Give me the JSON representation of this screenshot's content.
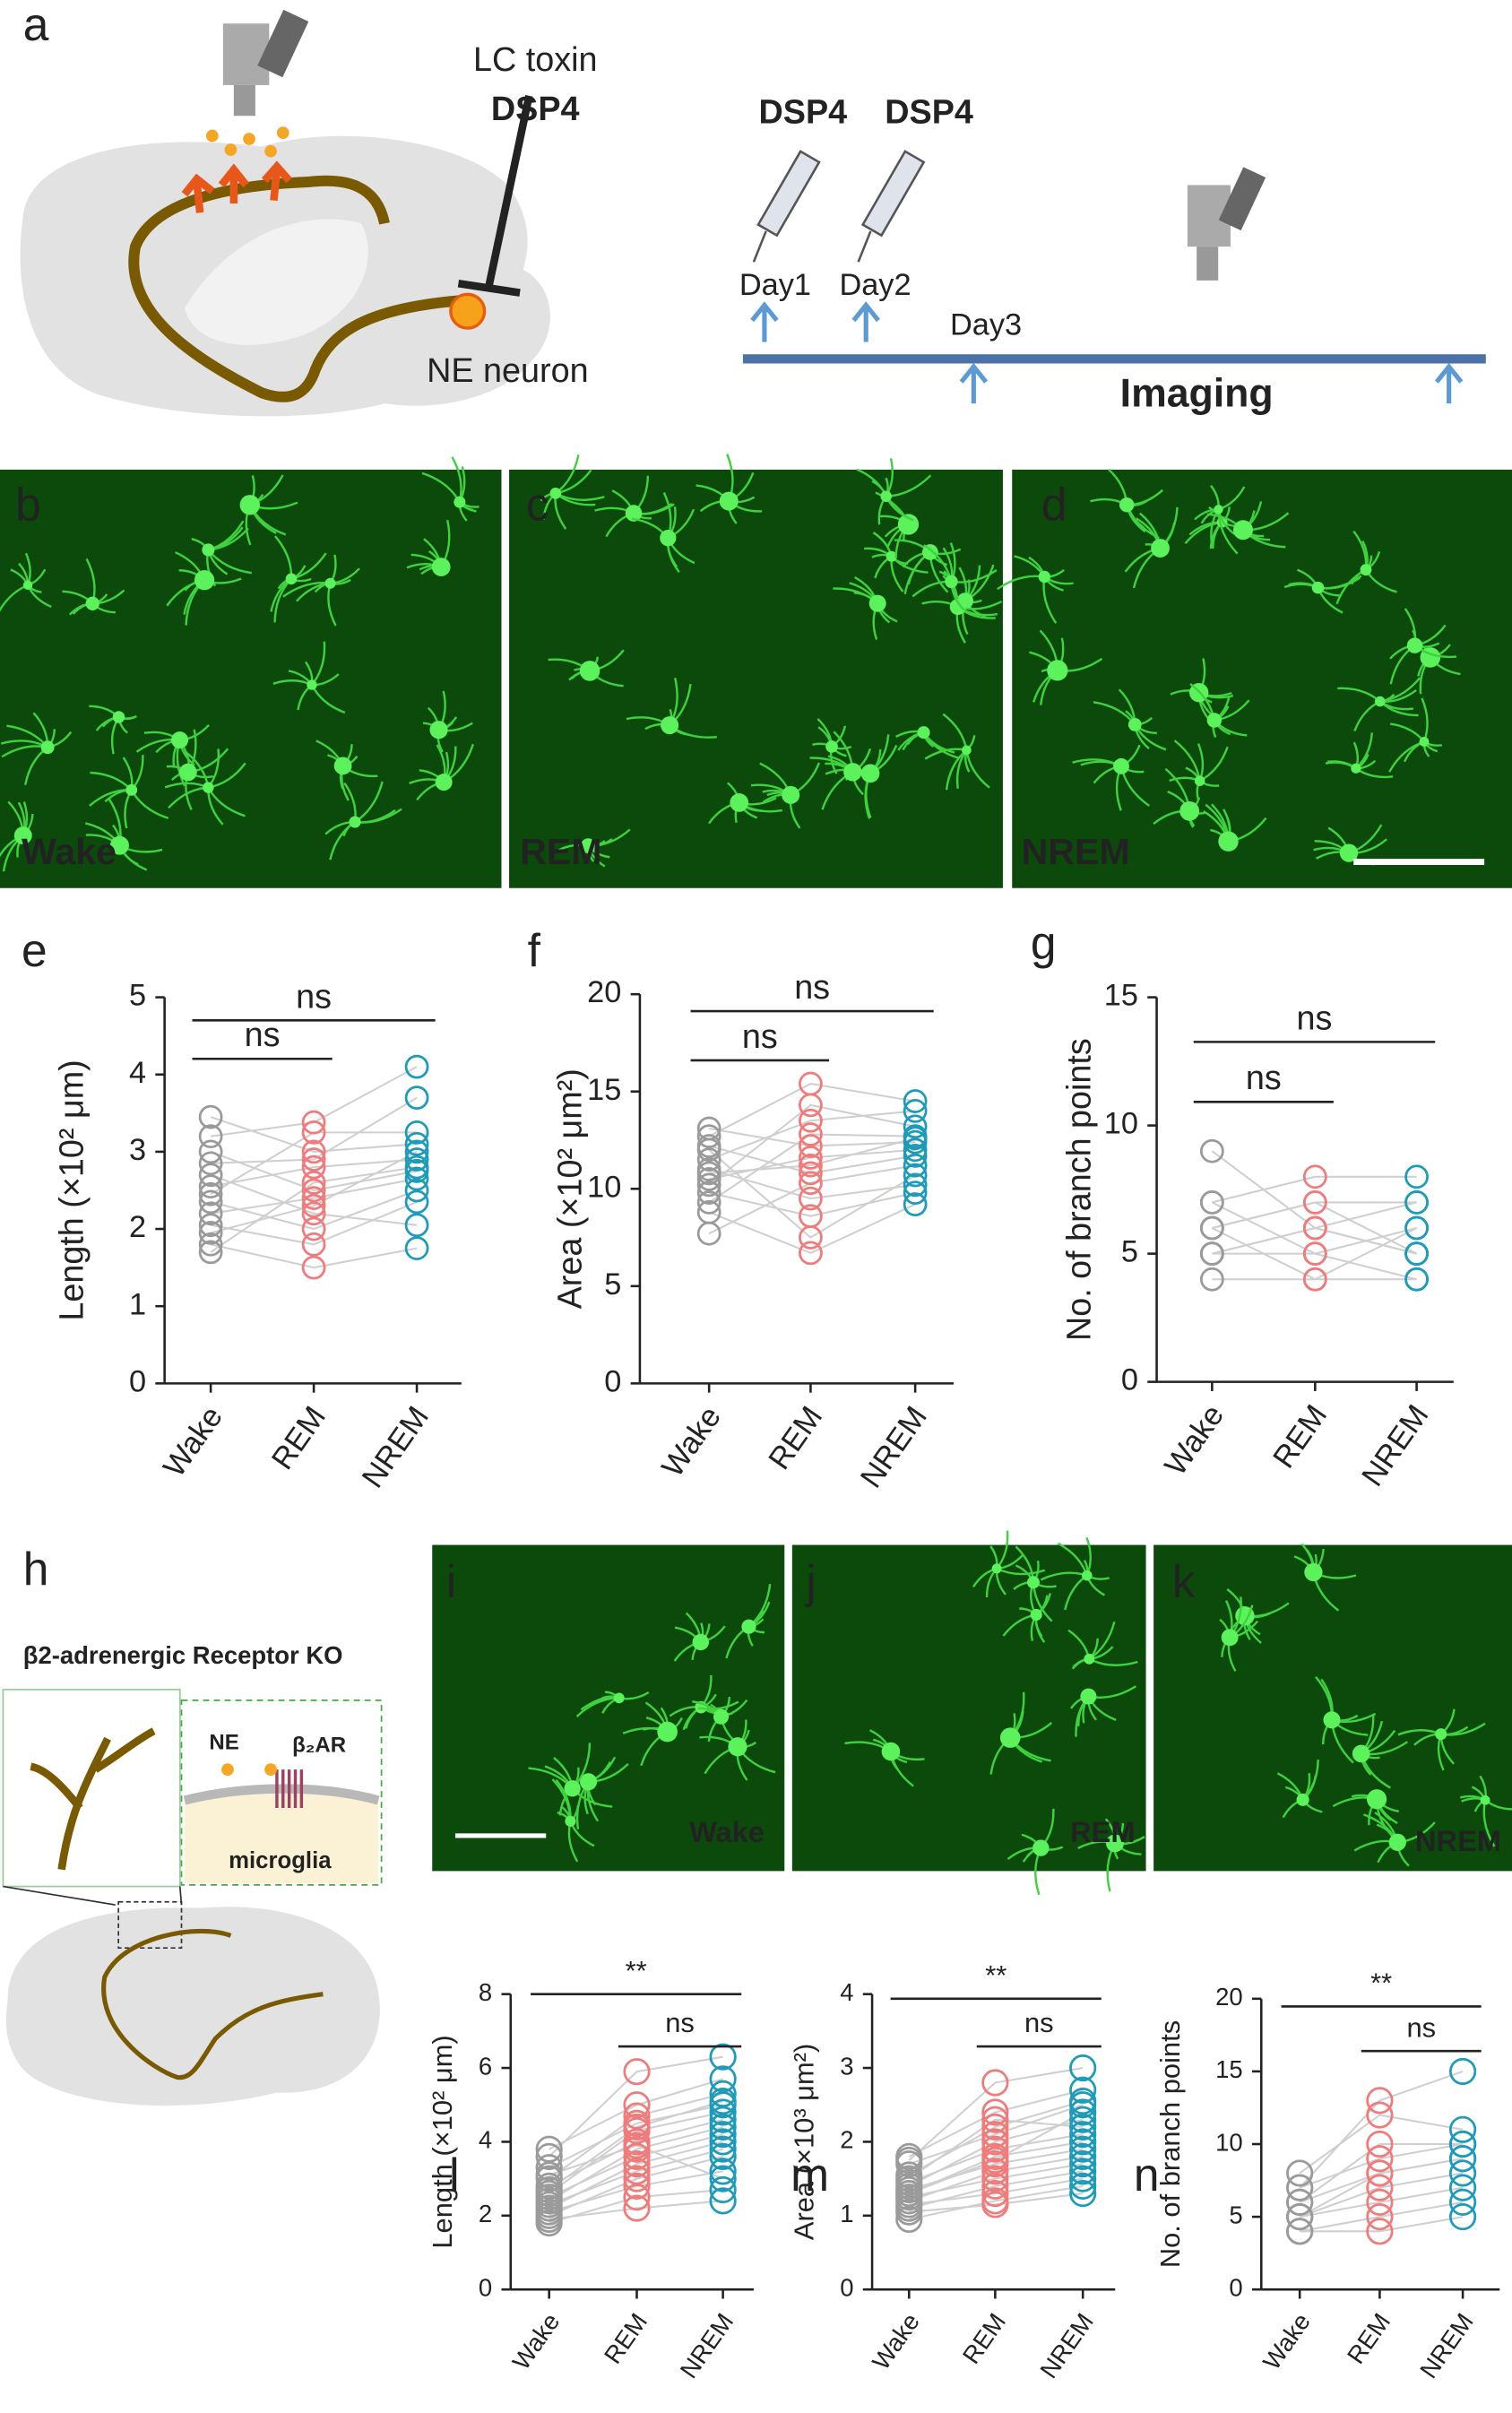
{
  "panel_labels": [
    "a",
    "b",
    "c",
    "d",
    "e",
    "f",
    "g",
    "h",
    "i",
    "j",
    "k",
    "l",
    "m",
    "n"
  ],
  "schematic_a": {
    "toxin_label": "LC toxin",
    "toxin_name": "DSP4",
    "neuron_label": "NE neuron"
  },
  "timeline": {
    "injections": [
      "DSP4",
      "DSP4"
    ],
    "days": [
      "Day1",
      "Day2",
      "Day3"
    ],
    "imaging_label": "Imaging"
  },
  "micrographs_top": [
    "Wake",
    "REM",
    "NREM"
  ],
  "schematic_h": {
    "title": "β2-adrenergic Receptor KO",
    "ne_label": "NE",
    "receptor_label": "β₂AR",
    "cell_label": "microglia"
  },
  "micrographs_bottom": [
    "Wake",
    "REM",
    "NREM"
  ],
  "chart_data": [
    {
      "type": "paired-scatter",
      "ylabel": "Length (×10² μm)",
      "categories": [
        "Wake",
        "REM",
        "NREM"
      ],
      "colors": [
        "#9a9a9a",
        "#ef7b7b",
        "#1d9bb8"
      ],
      "values": [
        [
          3.45,
          3.2,
          3.0,
          2.85,
          2.7,
          2.55,
          2.45,
          2.35,
          2.2,
          2.05,
          1.95,
          1.8,
          1.7
        ],
        [
          3.0,
          3.38,
          2.5,
          2.9,
          2.2,
          2.8,
          3.25,
          2.0,
          2.4,
          1.8,
          2.3,
          1.5,
          2.6
        ],
        [
          3.1,
          4.1,
          2.75,
          3.7,
          2.05,
          2.9,
          3.25,
          2.5,
          2.65,
          2.35,
          3.0,
          1.75,
          2.8
        ]
      ],
      "ylim": [
        0,
        5
      ],
      "yticks": [
        0,
        1,
        2,
        3,
        4,
        5
      ],
      "brackets": [
        {
          "label": "ns",
          "span": [
            0,
            1
          ]
        },
        {
          "label": "ns",
          "span": [
            0,
            2
          ]
        }
      ]
    },
    {
      "type": "paired-scatter",
      "ylabel": "Area (×10² μm²)",
      "categories": [
        "Wake",
        "REM",
        "NREM"
      ],
      "colors": [
        "#9a9a9a",
        "#ef7b7b",
        "#1d9bb8"
      ],
      "values": [
        [
          13.1,
          12.7,
          12.2,
          11.5,
          11.0,
          10.5,
          10.2,
          9.8,
          9.3,
          8.8,
          7.7,
          12.0,
          10.8
        ],
        [
          12.2,
          15.4,
          10.8,
          13.5,
          9.5,
          11.6,
          14.3,
          8.6,
          12.8,
          6.7,
          10.3,
          7.5,
          11.2
        ],
        [
          12.4,
          14.5,
          11.7,
          14.0,
          10.2,
          12.0,
          13.2,
          9.8,
          12.7,
          9.2,
          11.2,
          10.7,
          12.6
        ]
      ],
      "ylim": [
        0,
        20
      ],
      "yticks": [
        0,
        5,
        10,
        15,
        20
      ],
      "brackets": [
        {
          "label": "ns",
          "span": [
            0,
            1
          ]
        },
        {
          "label": "ns",
          "span": [
            0,
            2
          ]
        }
      ]
    },
    {
      "type": "paired-scatter",
      "ylabel": "No. of branch points",
      "categories": [
        "Wake",
        "REM",
        "NREM"
      ],
      "colors": [
        "#9a9a9a",
        "#ef7b7b",
        "#1d9bb8"
      ],
      "values": [
        [
          9,
          7,
          7,
          6,
          6,
          5,
          5,
          4,
          6,
          5
        ],
        [
          6,
          8,
          5,
          7,
          4,
          6,
          5,
          4,
          7,
          6
        ],
        [
          5,
          8,
          6,
          7,
          4,
          5,
          4,
          6,
          5,
          7
        ]
      ],
      "ylim": [
        0,
        15
      ],
      "yticks": [
        0,
        5,
        10,
        15
      ],
      "brackets": [
        {
          "label": "ns",
          "span": [
            0,
            1
          ]
        },
        {
          "label": "ns",
          "span": [
            0,
            2
          ]
        }
      ]
    },
    {
      "type": "paired-scatter",
      "ylabel": "Length (×10² μm)",
      "categories": [
        "Wake",
        "REM",
        "NREM"
      ],
      "colors": [
        "#9a9a9a",
        "#ef7b7b",
        "#1d9bb8"
      ],
      "values": [
        [
          3.8,
          3.6,
          3.3,
          3.0,
          2.8,
          2.6,
          2.5,
          2.4,
          2.3,
          2.2,
          2.1,
          2.0,
          1.9,
          1.8,
          2.7,
          3.1
        ],
        [
          5.0,
          5.9,
          4.5,
          4.7,
          4.0,
          4.3,
          3.6,
          3.8,
          3.2,
          3.4,
          2.8,
          3.0,
          2.2,
          2.5,
          4.4,
          3.9
        ],
        [
          5.7,
          6.3,
          5.0,
          5.3,
          4.6,
          4.8,
          4.2,
          4.4,
          3.8,
          4.0,
          3.2,
          3.6,
          2.4,
          2.7,
          5.1,
          3.0
        ]
      ],
      "ylim": [
        0,
        8
      ],
      "yticks": [
        0,
        2,
        4,
        6,
        8
      ],
      "brackets": [
        {
          "label": "**",
          "span": [
            0,
            2
          ]
        },
        {
          "label": "ns",
          "span": [
            1,
            2
          ]
        }
      ]
    },
    {
      "type": "paired-scatter",
      "ylabel": "Area (×10³ μm²)",
      "categories": [
        "Wake",
        "REM",
        "NREM"
      ],
      "colors": [
        "#9a9a9a",
        "#ef7b7b",
        "#1d9bb8"
      ],
      "values": [
        [
          1.8,
          1.75,
          1.7,
          1.55,
          1.45,
          1.4,
          1.35,
          1.3,
          1.25,
          1.2,
          1.15,
          1.1,
          1.05,
          0.95,
          1.5,
          1.3
        ],
        [
          2.4,
          2.8,
          2.1,
          2.2,
          1.9,
          2.0,
          1.7,
          1.8,
          1.5,
          1.6,
          1.3,
          1.4,
          1.15,
          1.2,
          2.3,
          1.75
        ],
        [
          2.7,
          3.0,
          2.5,
          2.55,
          2.1,
          2.3,
          1.9,
          2.0,
          1.7,
          1.8,
          1.5,
          1.6,
          1.3,
          1.4,
          2.2,
          2.4
        ]
      ],
      "ylim": [
        0,
        4
      ],
      "yticks": [
        0,
        1,
        2,
        3,
        4
      ],
      "brackets": [
        {
          "label": "**",
          "span": [
            0,
            2
          ]
        },
        {
          "label": "ns",
          "span": [
            1,
            2
          ]
        }
      ]
    },
    {
      "type": "paired-scatter",
      "ylabel": "No. of branch points",
      "categories": [
        "Wake",
        "REM",
        "NREM"
      ],
      "colors": [
        "#9a9a9a",
        "#ef7b7b",
        "#1d9bb8"
      ],
      "values": [
        [
          8,
          7,
          7,
          6,
          6,
          5,
          5,
          5,
          4,
          4
        ],
        [
          12,
          13,
          9,
          10,
          8,
          8,
          6,
          7,
          4,
          5
        ],
        [
          11,
          15,
          10,
          10,
          9,
          9,
          7,
          8,
          5,
          6
        ]
      ],
      "ylim": [
        0,
        20
      ],
      "yticks": [
        0,
        5,
        10,
        15,
        20
      ],
      "brackets": [
        {
          "label": "**",
          "span": [
            0,
            2
          ]
        },
        {
          "label": "ns",
          "span": [
            1,
            2
          ]
        }
      ]
    }
  ]
}
